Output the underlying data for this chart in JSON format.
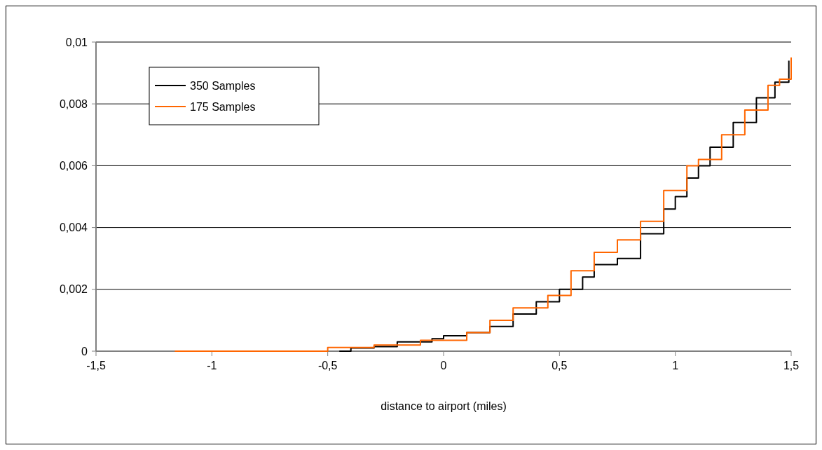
{
  "chart_data": {
    "type": "step",
    "xlabel": "distance to airport (miles)",
    "xlim": [
      -1.5,
      1.5
    ],
    "ylim": [
      0,
      0.01
    ],
    "xticks": [
      {
        "value": -1.5,
        "label": "-1,5"
      },
      -1,
      {
        "value": -0.5,
        "label": "-0,5"
      },
      0,
      {
        "value": 0.5,
        "label": "0,5"
      },
      1,
      {
        "value": 1.5,
        "label": "1,5"
      }
    ],
    "yticks": [
      0,
      {
        "value": 0.002,
        "label": "0,002"
      },
      {
        "value": 0.004,
        "label": "0,004"
      },
      {
        "value": 0.006,
        "label": "0,006"
      },
      {
        "value": 0.008,
        "label": "0,008"
      },
      {
        "value": 0.01,
        "label": "0,01"
      }
    ],
    "grid": "y",
    "legend": "top left",
    "marker": "none",
    "line_style": "solid",
    "series": [
      {
        "name": "350 Samples",
        "color": "#000000",
        "x": [
          -0.45,
          -0.4,
          -0.3,
          -0.2,
          -0.05,
          0,
          0.1,
          0.2,
          0.3,
          0.4,
          0.5,
          0.6,
          0.65,
          0.75,
          0.85,
          0.95,
          1.0,
          1.05,
          1.1,
          1.15,
          1.25,
          1.35,
          1.43,
          1.49
        ],
        "values": [
          0,
          0.0001,
          0.00015,
          0.0003,
          0.0004,
          0.0005,
          0.0006,
          0.0008,
          0.0012,
          0.0016,
          0.002,
          0.0024,
          0.0028,
          0.003,
          0.0038,
          0.0046,
          0.005,
          0.0056,
          0.006,
          0.0066,
          0.0074,
          0.0082,
          0.0087,
          0.0094
        ]
      },
      {
        "name": "175 Samples",
        "color": "#ff6600",
        "x": [
          -1.16,
          -0.6,
          -0.5,
          -0.3,
          -0.1,
          0,
          0.1,
          0.2,
          0.3,
          0.45,
          0.55,
          0.65,
          0.75,
          0.85,
          0.95,
          1.05,
          1.1,
          1.2,
          1.3,
          1.4,
          1.45,
          1.5
        ],
        "values": [
          0,
          0,
          0.00012,
          0.0002,
          0.00035,
          0.00035,
          0.0006,
          0.001,
          0.0014,
          0.0018,
          0.0026,
          0.0032,
          0.0036,
          0.0042,
          0.0052,
          0.006,
          0.0062,
          0.007,
          0.0078,
          0.0086,
          0.0088,
          0.0095
        ]
      }
    ]
  }
}
